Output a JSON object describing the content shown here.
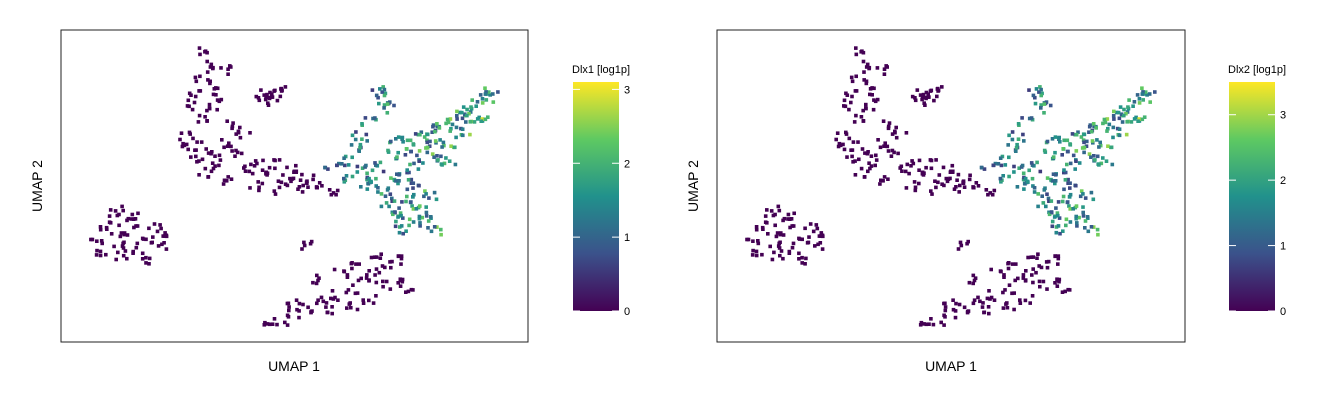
{
  "chart_data": [
    {
      "type": "scatter",
      "title": "",
      "xlabel": "UMAP 1",
      "ylabel": "UMAP 2",
      "x_range": [
        0,
        100
      ],
      "y_range": [
        0,
        100
      ],
      "axis_ticks": false,
      "grid": false,
      "legend": {
        "placement": "right",
        "title": "Dlx1 [log1p]",
        "min": 0,
        "max": 3.1,
        "ticks": [
          0,
          1,
          2,
          3
        ],
        "palette": [
          "#440154",
          "#3b528b",
          "#21918c",
          "#5ec962",
          "#fde725"
        ]
      },
      "clusters": [
        {
          "name": "top-left-group",
          "points": [
            [
              31,
              93
            ],
            [
              32,
              89
            ],
            [
              30,
              85
            ],
            [
              33,
              82
            ],
            [
              34,
              78
            ],
            [
              29,
              80
            ],
            [
              32,
              75
            ],
            [
              35,
              87
            ],
            [
              28,
              76
            ],
            [
              31,
              71
            ],
            [
              27,
              66
            ],
            [
              30,
              63
            ],
            [
              33,
              61
            ],
            [
              36,
              64
            ],
            [
              38,
              60
            ],
            [
              34,
              57
            ],
            [
              29,
              58
            ],
            [
              26,
              62
            ],
            [
              35,
              52
            ],
            [
              31,
              54
            ],
            [
              39,
              67
            ],
            [
              40,
              55
            ],
            [
              42,
              58
            ],
            [
              37,
              70
            ]
          ]
        },
        {
          "name": "small-top-right",
          "points": [
            [
              44,
              80
            ],
            [
              46,
              79
            ],
            [
              45,
              77
            ],
            [
              43,
              78
            ],
            [
              47,
              81
            ]
          ]
        },
        {
          "name": "mid-left-small",
          "points": [
            [
              46,
              57
            ],
            [
              48,
              52
            ],
            [
              44,
              55
            ],
            [
              50,
              56
            ],
            [
              47,
              49
            ],
            [
              42,
              50
            ],
            [
              51,
              53
            ]
          ]
        },
        {
          "name": "center-small",
          "points": [
            [
              54,
              52
            ],
            [
              56,
              50
            ],
            [
              58,
              48
            ],
            [
              52,
              49
            ]
          ]
        },
        {
          "name": "left-group",
          "points": [
            [
              8,
              33
            ],
            [
              10,
              36
            ],
            [
              12,
              31
            ],
            [
              14,
              34
            ],
            [
              16,
              38
            ],
            [
              13,
              28
            ],
            [
              17,
              30
            ],
            [
              19,
              33
            ],
            [
              20,
              37
            ],
            [
              15,
              40
            ],
            [
              11,
              39
            ],
            [
              18,
              26
            ],
            [
              21,
              31
            ],
            [
              23,
              35
            ],
            [
              9,
              29
            ],
            [
              12,
              42
            ]
          ]
        },
        {
          "name": "stray-point",
          "points": [
            [
              53,
              31
            ]
          ]
        },
        {
          "name": "bottom-group",
          "points": [
            [
              44,
              5
            ],
            [
              47,
              7
            ],
            [
              50,
              9
            ],
            [
              53,
              11
            ],
            [
              56,
              13
            ],
            [
              59,
              15
            ],
            [
              62,
              17
            ],
            [
              55,
              20
            ],
            [
              65,
              19
            ],
            [
              67,
              22
            ],
            [
              70,
              25
            ],
            [
              72,
              20
            ],
            [
              74,
              17
            ],
            [
              69,
              18
            ],
            [
              66,
              14
            ],
            [
              63,
              25
            ],
            [
              68,
              28
            ],
            [
              73,
              26
            ],
            [
              60,
              22
            ],
            [
              58,
              10
            ],
            [
              62,
              12
            ],
            [
              50,
              12
            ]
          ]
        },
        {
          "name": "right-branch",
          "value_hint": "expressing",
          "points": [
            [
              61,
              58
            ],
            [
              63,
              62
            ],
            [
              64,
              66
            ],
            [
              65,
              55
            ],
            [
              66,
              71
            ],
            [
              68,
              81
            ],
            [
              69,
              78
            ],
            [
              70,
              75
            ],
            [
              71,
              60
            ],
            [
              72,
              65
            ],
            [
              73,
              55
            ],
            [
              74,
              64
            ],
            [
              75,
              61
            ],
            [
              76,
              57
            ],
            [
              77,
              66
            ],
            [
              78,
              62
            ],
            [
              79,
              68
            ],
            [
              80,
              65
            ],
            [
              81,
              59
            ],
            [
              82,
              70
            ],
            [
              83,
              64
            ],
            [
              84,
              69
            ],
            [
              85,
              73
            ],
            [
              86,
              67
            ],
            [
              87,
              74
            ],
            [
              88,
              71
            ],
            [
              89,
              76
            ],
            [
              90,
              72
            ],
            [
              91,
              78
            ],
            [
              92,
              80
            ],
            [
              67,
              52
            ],
            [
              69,
              49
            ],
            [
              71,
              46
            ],
            [
              70,
              42
            ],
            [
              72,
              40
            ],
            [
              74,
              44
            ],
            [
              76,
              38
            ],
            [
              75,
              48
            ],
            [
              73,
              36
            ],
            [
              77,
              43
            ],
            [
              78,
              39
            ],
            [
              79,
              47
            ],
            [
              80,
              36
            ],
            [
              68,
              56
            ],
            [
              62,
              52
            ],
            [
              65,
              50
            ],
            [
              76,
              51
            ],
            [
              72,
              52
            ],
            [
              58,
              56
            ],
            [
              83,
              58
            ]
          ]
        }
      ]
    },
    {
      "type": "scatter",
      "title": "",
      "xlabel": "UMAP 1",
      "ylabel": "UMAP 2",
      "x_range": [
        0,
        100
      ],
      "y_range": [
        0,
        100
      ],
      "axis_ticks": false,
      "grid": false,
      "legend": {
        "placement": "right",
        "title": "Dlx2 [log1p]",
        "min": 0,
        "max": 3.5,
        "ticks": [
          0,
          1,
          2,
          3
        ],
        "palette": [
          "#440154",
          "#3b528b",
          "#21918c",
          "#5ec962",
          "#fde725"
        ]
      },
      "clusters": [
        {
          "name": "top-left-group",
          "points": [
            [
              31,
              93
            ],
            [
              32,
              89
            ],
            [
              30,
              85
            ],
            [
              33,
              82
            ],
            [
              34,
              78
            ],
            [
              29,
              80
            ],
            [
              32,
              75
            ],
            [
              35,
              87
            ],
            [
              28,
              76
            ],
            [
              31,
              71
            ],
            [
              27,
              66
            ],
            [
              30,
              63
            ],
            [
              33,
              61
            ],
            [
              36,
              64
            ],
            [
              38,
              60
            ],
            [
              34,
              57
            ],
            [
              29,
              58
            ],
            [
              26,
              62
            ],
            [
              35,
              52
            ],
            [
              31,
              54
            ],
            [
              39,
              67
            ],
            [
              40,
              55
            ],
            [
              42,
              58
            ],
            [
              37,
              70
            ]
          ]
        },
        {
          "name": "small-top-right",
          "points": [
            [
              44,
              80
            ],
            [
              46,
              79
            ],
            [
              45,
              77
            ],
            [
              43,
              78
            ],
            [
              47,
              81
            ]
          ]
        },
        {
          "name": "mid-left-small",
          "points": [
            [
              46,
              57
            ],
            [
              48,
              52
            ],
            [
              44,
              55
            ],
            [
              50,
              56
            ],
            [
              47,
              49
            ],
            [
              42,
              50
            ],
            [
              51,
              53
            ]
          ]
        },
        {
          "name": "center-small",
          "points": [
            [
              54,
              52
            ],
            [
              56,
              50
            ],
            [
              58,
              48
            ],
            [
              52,
              49
            ]
          ]
        },
        {
          "name": "left-group",
          "points": [
            [
              8,
              33
            ],
            [
              10,
              36
            ],
            [
              12,
              31
            ],
            [
              14,
              34
            ],
            [
              16,
              38
            ],
            [
              13,
              28
            ],
            [
              17,
              30
            ],
            [
              19,
              33
            ],
            [
              20,
              37
            ],
            [
              15,
              40
            ],
            [
              11,
              39
            ],
            [
              18,
              26
            ],
            [
              21,
              31
            ],
            [
              23,
              35
            ],
            [
              9,
              29
            ],
            [
              12,
              42
            ]
          ]
        },
        {
          "name": "stray-point",
          "points": [
            [
              53,
              31
            ]
          ]
        },
        {
          "name": "bottom-group",
          "points": [
            [
              44,
              5
            ],
            [
              47,
              7
            ],
            [
              50,
              9
            ],
            [
              53,
              11
            ],
            [
              56,
              13
            ],
            [
              59,
              15
            ],
            [
              62,
              17
            ],
            [
              55,
              20
            ],
            [
              65,
              19
            ],
            [
              67,
              22
            ],
            [
              70,
              25
            ],
            [
              72,
              20
            ],
            [
              74,
              17
            ],
            [
              69,
              18
            ],
            [
              66,
              14
            ],
            [
              63,
              25
            ],
            [
              68,
              28
            ],
            [
              73,
              26
            ],
            [
              60,
              22
            ],
            [
              58,
              10
            ],
            [
              62,
              12
            ],
            [
              50,
              12
            ]
          ]
        },
        {
          "name": "right-branch",
          "value_hint": "expressing",
          "points": [
            [
              61,
              58
            ],
            [
              63,
              62
            ],
            [
              64,
              66
            ],
            [
              65,
              55
            ],
            [
              66,
              71
            ],
            [
              68,
              81
            ],
            [
              69,
              78
            ],
            [
              70,
              75
            ],
            [
              71,
              60
            ],
            [
              72,
              65
            ],
            [
              73,
              55
            ],
            [
              74,
              64
            ],
            [
              75,
              61
            ],
            [
              76,
              57
            ],
            [
              77,
              66
            ],
            [
              78,
              62
            ],
            [
              79,
              68
            ],
            [
              80,
              65
            ],
            [
              81,
              59
            ],
            [
              82,
              70
            ],
            [
              83,
              64
            ],
            [
              84,
              69
            ],
            [
              85,
              73
            ],
            [
              86,
              67
            ],
            [
              87,
              74
            ],
            [
              88,
              71
            ],
            [
              89,
              76
            ],
            [
              90,
              72
            ],
            [
              91,
              78
            ],
            [
              92,
              80
            ],
            [
              67,
              52
            ],
            [
              69,
              49
            ],
            [
              71,
              46
            ],
            [
              70,
              42
            ],
            [
              72,
              40
            ],
            [
              74,
              44
            ],
            [
              76,
              38
            ],
            [
              75,
              48
            ],
            [
              73,
              36
            ],
            [
              77,
              43
            ],
            [
              78,
              39
            ],
            [
              79,
              47
            ],
            [
              80,
              36
            ],
            [
              68,
              56
            ],
            [
              62,
              52
            ],
            [
              65,
              50
            ],
            [
              76,
              51
            ],
            [
              72,
              52
            ],
            [
              58,
              56
            ],
            [
              83,
              58
            ]
          ]
        }
      ]
    }
  ]
}
